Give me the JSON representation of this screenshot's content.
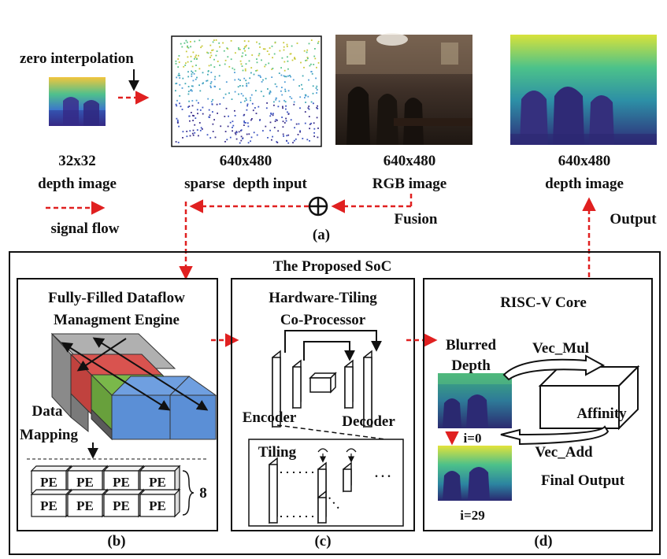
{
  "top": {
    "zero_interpolation": "zero interpolation",
    "small_depth": {
      "size": "32x32",
      "name": "depth image"
    },
    "sparse_input": {
      "size": "640x480",
      "name": "sparse  depth input"
    },
    "rgb_image": {
      "size": "640x480",
      "name": "RGB image"
    },
    "output_depth": {
      "size": "640x480",
      "name": "depth image"
    },
    "signal_flow": "signal flow",
    "fusion": "Fusion",
    "output": "Output",
    "panel_label": "(a)"
  },
  "soc": {
    "title": "The Proposed SoC",
    "engine": {
      "title_line1": "Fully-Filled Dataflow",
      "title_line2": "Managment Engine",
      "data_line1": "Data",
      "data_line2": "Mapping",
      "pe_label": "PE",
      "pe_count": "8",
      "panel_label": "(b)"
    },
    "coprocessor": {
      "title_line1": "Hardware-Tiling",
      "title_line2": "Co-Processor",
      "encoder": "Encoder",
      "decoder": "Decoder",
      "tiling": "Tiling",
      "dots": ". . .",
      "panel_label": "(c)"
    },
    "riscv": {
      "title": "RISC-V Core",
      "blurred_line1": "Blurred",
      "blurred_line2": "Depth",
      "vec_mul": "Vec_Mul",
      "vec_add": "Vec_Add",
      "affinity": "Affinity",
      "iter_start": "i=0",
      "iter_end": "i=29",
      "final_output": "Final Output",
      "panel_label": "(d)"
    }
  },
  "colors": {
    "arrow_red": "#e02020",
    "tile_gray": "#8a8a8a",
    "tile_red": "#d9534f",
    "tile_green": "#7ab84a",
    "tile_blue": "#5b8fd6"
  }
}
